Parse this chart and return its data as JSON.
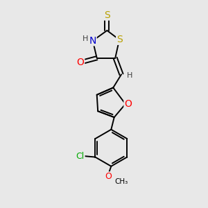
{
  "bg_color": "#e8e8e8",
  "atom_colors": {
    "S": "#b8a000",
    "O": "#ff0000",
    "N": "#0000cc",
    "Cl": "#00aa00",
    "C": "#000000",
    "H": "#404040"
  },
  "bond_color": "#000000",
  "lw": 1.4
}
